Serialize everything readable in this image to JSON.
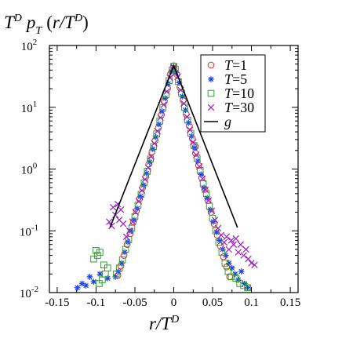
{
  "chart_data": {
    "type": "scatter",
    "ylabel": "T^D p_T (r/T^D)",
    "ylabel_parts": {
      "T": "T",
      "D1": "D",
      "p": "p",
      "sub": "T",
      "open": "(",
      "r": "r/",
      "T2": "T",
      "D2": "D",
      "close": ")"
    },
    "xlabel": "r/T^D",
    "xlabel_parts": {
      "r": "r/",
      "T": "T",
      "D": "D"
    },
    "x_range": [
      -0.16,
      0.16
    ],
    "y_range": [
      0.01,
      100
    ],
    "y_scale": "log",
    "x_ticks": [
      {
        "v": -0.15,
        "label": "-0.15"
      },
      {
        "v": -0.1,
        "label": "-0.1"
      },
      {
        "v": -0.05,
        "label": "-0.05"
      },
      {
        "v": 0,
        "label": "0"
      },
      {
        "v": 0.05,
        "label": "0.05"
      },
      {
        "v": 0.1,
        "label": "0.1"
      },
      {
        "v": 0.15,
        "label": "0.15"
      }
    ],
    "y_ticks": [
      {
        "v": 0.01,
        "base": "10",
        "exp": "-2"
      },
      {
        "v": 0.1,
        "base": "10",
        "exp": "-1"
      },
      {
        "v": 1,
        "base": "10",
        "exp": "0"
      },
      {
        "v": 10,
        "base": "10",
        "exp": "1"
      },
      {
        "v": 100,
        "base": "10",
        "exp": "2"
      }
    ],
    "legend": {
      "position": "top-right",
      "entries": [
        {
          "var": "T",
          "suffix": "=1",
          "marker": "circle",
          "color": "#e8271e"
        },
        {
          "var": "T",
          "suffix": "=5",
          "marker": "star",
          "color": "#1f3ff2"
        },
        {
          "var": "T",
          "suffix": "=10",
          "marker": "square",
          "color": "#2ca02c"
        },
        {
          "var": "T",
          "suffix": "=30",
          "marker": "cross",
          "color": "#9b1fc9"
        },
        {
          "var": "g",
          "suffix": "",
          "marker": "line",
          "color": "#000000"
        }
      ]
    },
    "curve_g": {
      "peak": 47,
      "scale": 0.0136,
      "x_min": -0.082,
      "x_max": 0.082
    },
    "series": [
      {
        "name": "T=1",
        "marker": "circle",
        "color": "#e8271e",
        "points": [
          [
            0,
            47
          ],
          [
            -0.004,
            35
          ],
          [
            0.004,
            34
          ],
          [
            -0.008,
            20
          ],
          [
            0.008,
            21
          ],
          [
            -0.012,
            12.5
          ],
          [
            0.012,
            13
          ],
          [
            -0.016,
            7.5
          ],
          [
            0.016,
            7.8
          ],
          [
            -0.02,
            4.6
          ],
          [
            0.02,
            5.0
          ],
          [
            -0.024,
            2.9
          ],
          [
            0.024,
            3.1
          ],
          [
            -0.028,
            1.9
          ],
          [
            0.028,
            1.8
          ],
          [
            -0.032,
            1.2
          ],
          [
            0.032,
            1.15
          ],
          [
            -0.036,
            0.75
          ],
          [
            0.036,
            0.72
          ],
          [
            -0.04,
            0.5
          ],
          [
            0.04,
            0.47
          ],
          [
            -0.044,
            0.33
          ],
          [
            0.044,
            0.31
          ],
          [
            -0.048,
            0.21
          ],
          [
            0.048,
            0.2
          ],
          [
            -0.052,
            0.14
          ],
          [
            0.052,
            0.13
          ],
          [
            -0.056,
            0.09
          ],
          [
            0.056,
            0.085
          ],
          [
            -0.06,
            0.06
          ],
          [
            0.06,
            0.057
          ],
          [
            -0.064,
            0.04
          ],
          [
            0.064,
            0.038
          ],
          [
            -0.068,
            0.027
          ],
          [
            0.068,
            0.026
          ],
          [
            0.072,
            0.018
          ],
          [
            -0.072,
            0.019
          ],
          [
            0.028,
            2.3
          ],
          [
            -0.03,
            1.4
          ]
        ]
      },
      {
        "name": "T=5",
        "marker": "star",
        "color": "#1f3ff2",
        "points": [
          [
            0,
            45
          ],
          [
            -0.003,
            38
          ],
          [
            0.003,
            37
          ],
          [
            -0.007,
            24
          ],
          [
            0.007,
            25
          ],
          [
            -0.011,
            14
          ],
          [
            0.011,
            15
          ],
          [
            -0.015,
            8.6
          ],
          [
            0.015,
            9
          ],
          [
            -0.019,
            5.3
          ],
          [
            0.019,
            5.6
          ],
          [
            -0.023,
            3.3
          ],
          [
            0.023,
            3.4
          ],
          [
            -0.027,
            2.1
          ],
          [
            0.027,
            2.2
          ],
          [
            -0.031,
            1.3
          ],
          [
            0.031,
            1.35
          ],
          [
            -0.035,
            0.85
          ],
          [
            0.035,
            0.82
          ],
          [
            -0.039,
            0.55
          ],
          [
            0.039,
            0.5
          ],
          [
            -0.043,
            0.36
          ],
          [
            0.043,
            0.34
          ],
          [
            -0.047,
            0.23
          ],
          [
            0.047,
            0.22
          ],
          [
            -0.051,
            0.15
          ],
          [
            0.051,
            0.14
          ],
          [
            -0.055,
            0.1
          ],
          [
            0.055,
            0.095
          ],
          [
            -0.059,
            0.066
          ],
          [
            0.059,
            0.07
          ],
          [
            -0.063,
            0.045
          ],
          [
            0.063,
            0.05
          ],
          [
            -0.067,
            0.03
          ],
          [
            0.067,
            0.04
          ],
          [
            -0.071,
            0.022
          ],
          [
            0.071,
            0.03
          ],
          [
            0.075,
            0.025
          ],
          [
            -0.075,
            0.018
          ],
          [
            0.079,
            0.02
          ],
          [
            -0.085,
            0.017
          ],
          [
            -0.095,
            0.02
          ],
          [
            -0.103,
            0.015
          ],
          [
            -0.108,
            0.018
          ],
          [
            -0.113,
            0.013
          ],
          [
            -0.118,
            0.014
          ],
          [
            -0.124,
            0.012
          ],
          [
            0.083,
            0.016
          ],
          [
            0.087,
            0.022
          ],
          [
            0.091,
            0.014
          ],
          [
            0.095,
            0.012
          ]
        ]
      },
      {
        "name": "T=10",
        "marker": "square",
        "color": "#2ca02c",
        "points": [
          [
            0,
            46
          ],
          [
            -0.002,
            40
          ],
          [
            0.002,
            41
          ],
          [
            -0.006,
            27
          ],
          [
            0.006,
            26
          ],
          [
            -0.01,
            16
          ],
          [
            0.01,
            17
          ],
          [
            -0.014,
            9.8
          ],
          [
            0.014,
            10
          ],
          [
            -0.018,
            6
          ],
          [
            0.018,
            6.2
          ],
          [
            -0.022,
            3.7
          ],
          [
            0.022,
            3.8
          ],
          [
            -0.026,
            2.3
          ],
          [
            0.026,
            2.4
          ],
          [
            -0.03,
            1.45
          ],
          [
            0.03,
            1.5
          ],
          [
            -0.034,
            0.92
          ],
          [
            0.034,
            0.95
          ],
          [
            -0.038,
            0.6
          ],
          [
            0.038,
            0.58
          ],
          [
            -0.042,
            0.39
          ],
          [
            0.042,
            0.4
          ],
          [
            -0.046,
            0.26
          ],
          [
            0.046,
            0.25
          ],
          [
            -0.05,
            0.17
          ],
          [
            0.05,
            0.16
          ],
          [
            -0.054,
            0.11
          ],
          [
            0.054,
            0.1
          ],
          [
            -0.058,
            0.072
          ],
          [
            0.058,
            0.065
          ],
          [
            -0.062,
            0.05
          ],
          [
            0.062,
            0.045
          ],
          [
            -0.066,
            0.034
          ],
          [
            0.066,
            0.03
          ],
          [
            -0.07,
            0.025
          ],
          [
            0.07,
            0.022
          ],
          [
            -0.074,
            0.02
          ],
          [
            0.074,
            0.018
          ],
          [
            -0.09,
            0.028
          ],
          [
            -0.095,
            0.045
          ],
          [
            -0.098,
            0.04
          ],
          [
            -0.1,
            0.048
          ],
          [
            -0.103,
            0.035
          ],
          [
            -0.085,
            0.025
          ],
          [
            -0.088,
            0.02
          ],
          [
            -0.092,
            0.016
          ],
          [
            -0.096,
            0.014
          ],
          [
            0.08,
            0.017
          ],
          [
            0.085,
            0.014
          ],
          [
            0.09,
            0.013
          ],
          [
            0.095,
            0.012
          ]
        ]
      },
      {
        "name": "T=30",
        "marker": "cross",
        "color": "#9b1fc9",
        "points": [
          [
            0,
            44
          ],
          [
            -0.005,
            30
          ],
          [
            0.005,
            31
          ],
          [
            -0.009,
            18
          ],
          [
            0.009,
            19
          ],
          [
            -0.013,
            11
          ],
          [
            0.013,
            11.5
          ],
          [
            -0.017,
            6.8
          ],
          [
            0.017,
            7
          ],
          [
            -0.021,
            4.1
          ],
          [
            0.021,
            4.3
          ],
          [
            -0.025,
            2.6
          ],
          [
            0.025,
            2.7
          ],
          [
            -0.029,
            1.6
          ],
          [
            0.029,
            1.7
          ],
          [
            -0.033,
            1.05
          ],
          [
            0.033,
            1.1
          ],
          [
            -0.037,
            0.68
          ],
          [
            0.037,
            0.7
          ],
          [
            -0.041,
            0.45
          ],
          [
            0.041,
            0.46
          ],
          [
            -0.045,
            0.3
          ],
          [
            0.045,
            0.31
          ],
          [
            -0.049,
            0.2
          ],
          [
            0.049,
            0.21
          ],
          [
            -0.053,
            0.14
          ],
          [
            0.053,
            0.15
          ],
          [
            -0.057,
            0.1
          ],
          [
            0.057,
            0.11
          ],
          [
            -0.061,
            0.08
          ],
          [
            0.061,
            0.085
          ],
          [
            -0.065,
            0.13
          ],
          [
            -0.068,
            0.22
          ],
          [
            -0.07,
            0.15
          ],
          [
            -0.072,
            0.27
          ],
          [
            -0.075,
            0.18
          ],
          [
            -0.078,
            0.24
          ],
          [
            -0.08,
            0.12
          ],
          [
            -0.083,
            0.14
          ],
          [
            0.065,
            0.065
          ],
          [
            0.068,
            0.08
          ],
          [
            0.071,
            0.05
          ],
          [
            0.074,
            0.07
          ],
          [
            0.077,
            0.06
          ],
          [
            0.08,
            0.075
          ],
          [
            0.083,
            0.045
          ],
          [
            0.086,
            0.06
          ],
          [
            0.09,
            0.04
          ],
          [
            0.093,
            0.05
          ],
          [
            0.096,
            0.035
          ],
          [
            0.1,
            0.03
          ],
          [
            0.104,
            0.028
          ]
        ]
      }
    ]
  }
}
